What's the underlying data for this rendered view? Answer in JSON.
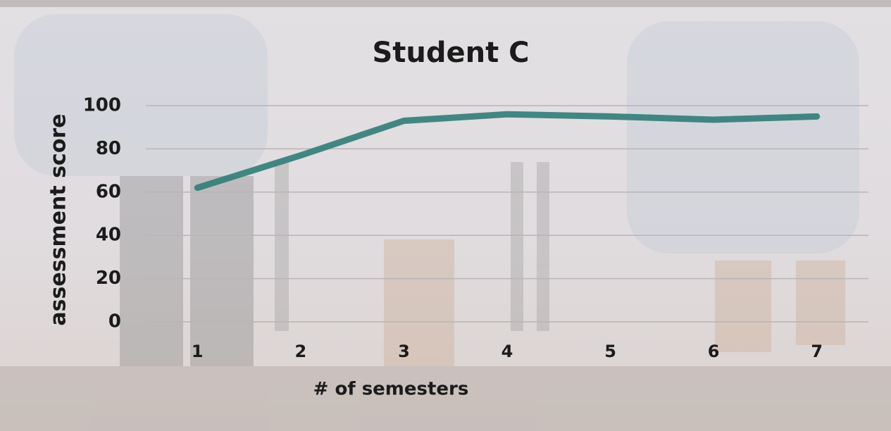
{
  "chart_data": {
    "type": "line",
    "title": "Student C",
    "x_label": "# of semesters",
    "y_label": "assessment score",
    "categories": [
      "1",
      "2",
      "3",
      "4",
      "5",
      "6",
      "7"
    ],
    "series": [
      {
        "name": "Student C",
        "color": "#2f7d79",
        "values": [
          62,
          77,
          93,
          96,
          95,
          93.5,
          95
        ]
      }
    ],
    "ylim": [
      0,
      100
    ],
    "yticks": [
      0,
      20,
      40,
      60,
      80,
      100
    ],
    "grid": true
  }
}
